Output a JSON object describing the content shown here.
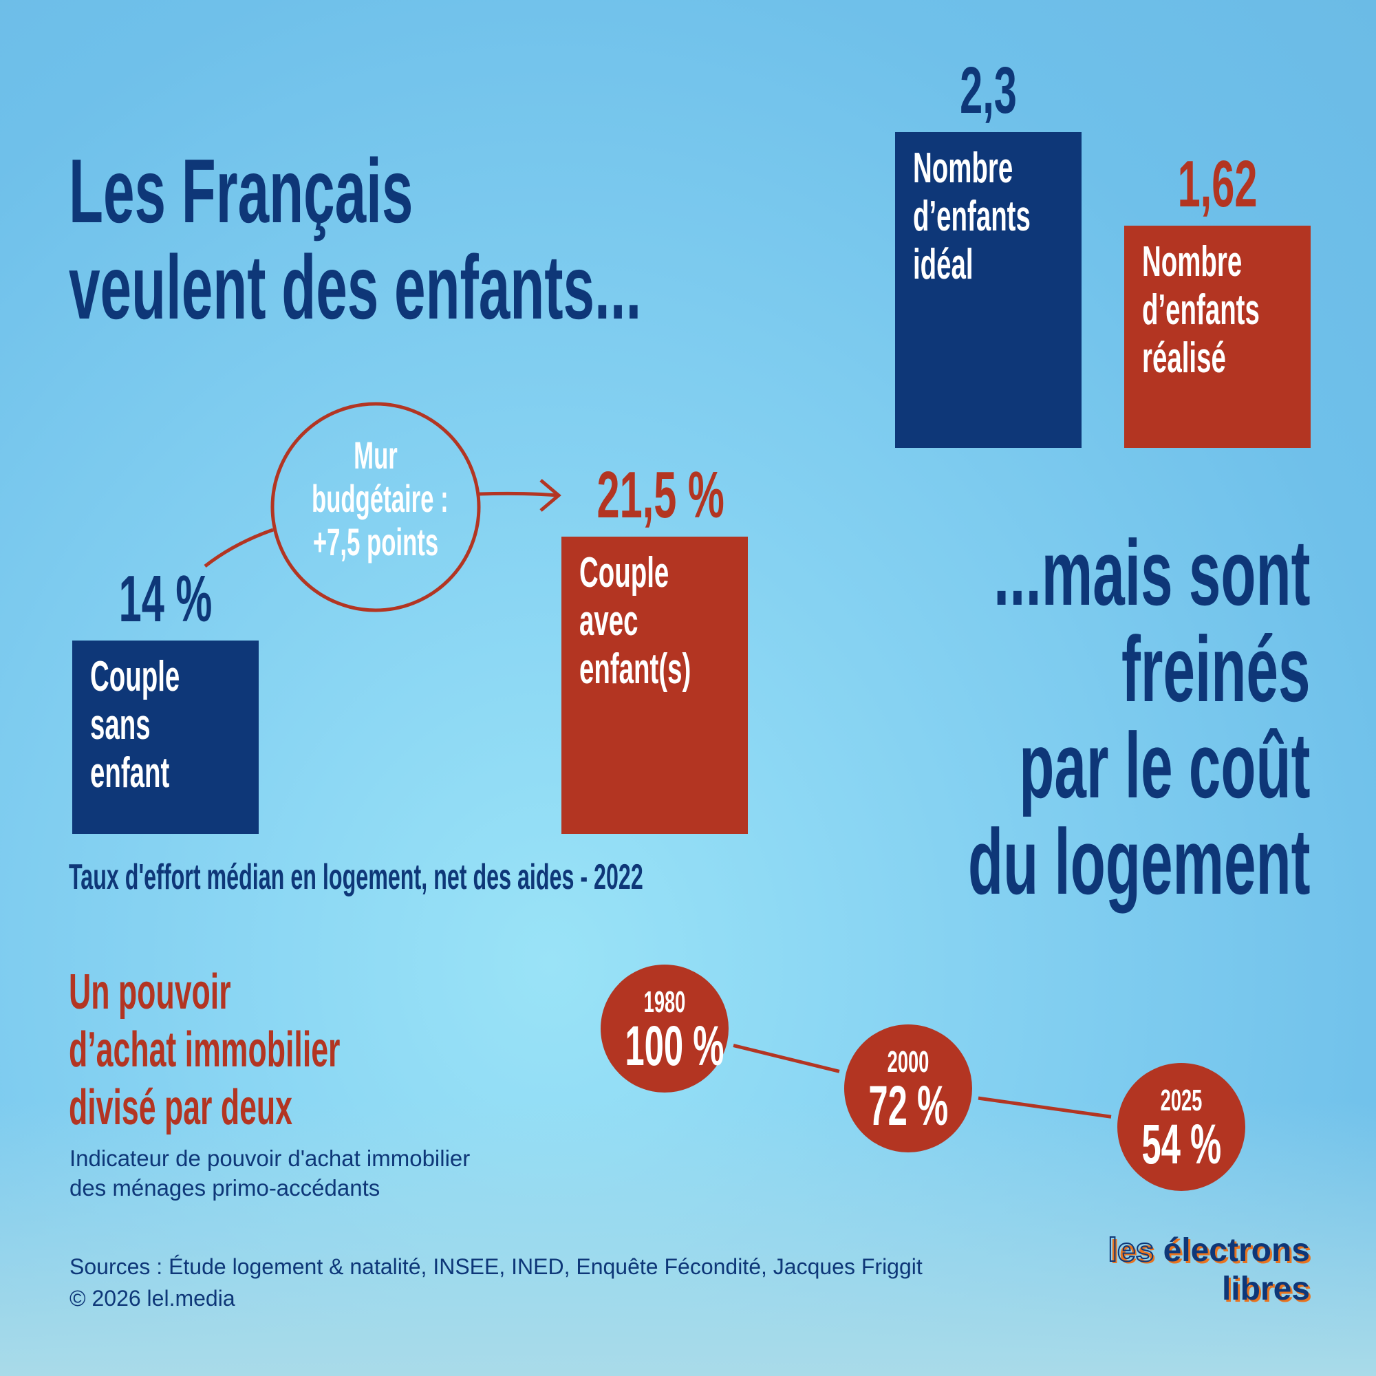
{
  "colors": {
    "navy": "#0e3778",
    "red": "#b33522"
  },
  "title": {
    "line1": "Les Français",
    "line2": "veulent des enfants..."
  },
  "right_title": {
    "line1": "...mais sont",
    "line2": "freinés",
    "line3": "par le coût",
    "line4": "du logement"
  },
  "chart_data": [
    {
      "type": "bar",
      "title": "Nombre d'enfants",
      "categories": [
        "Nombre d’enfants idéal",
        "Nombre d’enfants réalisé"
      ],
      "values": [
        2.3,
        1.62
      ],
      "value_labels": [
        "2,3",
        "1,62"
      ],
      "label_lines": [
        [
          "Nombre",
          "d’enfants",
          "idéal"
        ],
        [
          "Nombre",
          "d’enfants",
          "réalisé"
        ]
      ]
    },
    {
      "type": "bar",
      "title": "Taux d'effort médian en logement, net des aides - 2022",
      "categories": [
        "Couple sans enfant",
        "Couple avec enfant(s)"
      ],
      "values": [
        14,
        21.5
      ],
      "value_labels": [
        "14 %",
        "21,5 %"
      ],
      "label_lines": [
        [
          "Couple",
          "sans",
          "enfant"
        ],
        [
          "Couple",
          "avec",
          "enfant(s)"
        ]
      ],
      "annotation": {
        "line1": "Mur",
        "line2": "budgétaire :",
        "line3": "+7,5 points"
      }
    },
    {
      "type": "line",
      "title": "Un pouvoir d’achat immobilier divisé par deux",
      "subtitle": "Indicateur de pouvoir d'achat immobilier des ménages primo-accédants",
      "x": [
        "1980",
        "2000",
        "2025"
      ],
      "values": [
        100,
        72,
        54
      ],
      "value_labels": [
        "100 %",
        "72 %",
        "54 %"
      ]
    }
  ],
  "section3": {
    "title_lines": [
      "Un pouvoir",
      "d’achat immobilier",
      "divisé par deux"
    ],
    "subtitle_lines": [
      "Indicateur de pouvoir d'achat immobilier",
      "des ménages primo-accédants"
    ]
  },
  "footer": {
    "sources": "Sources : Étude logement & natalité, INSEE, INED, Enquête Fécondité, Jacques Friggit",
    "copyright": "© 2026 lel.media"
  },
  "logo": {
    "line1a": "les",
    "line1b": "électrons",
    "line2": "libres"
  }
}
